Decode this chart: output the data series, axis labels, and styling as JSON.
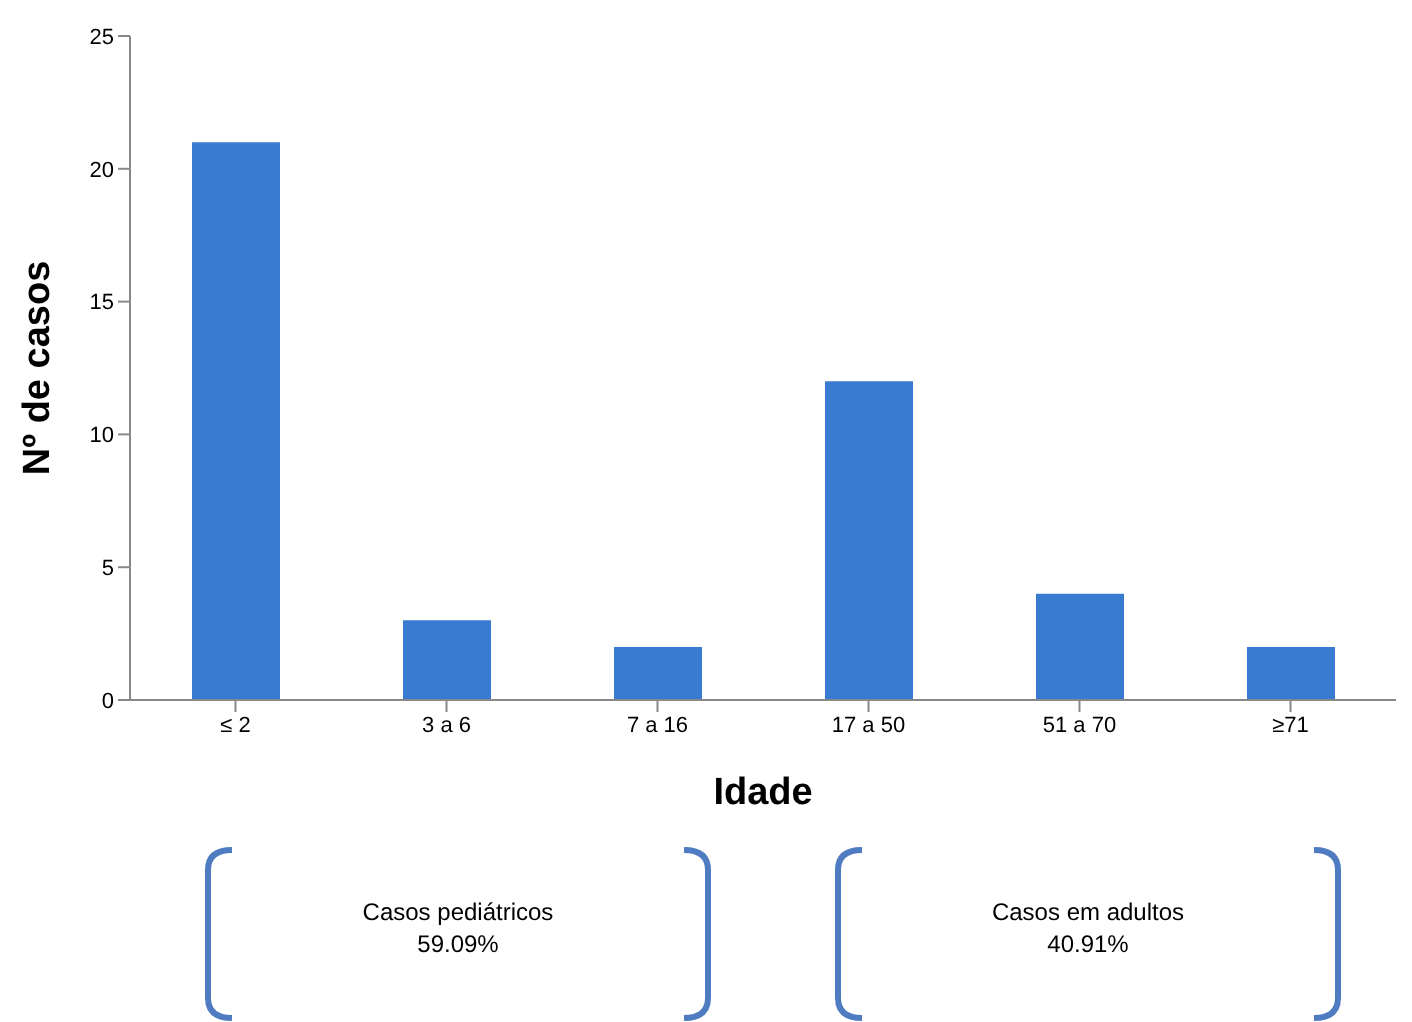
{
  "chart_data": {
    "type": "bar",
    "xlabel": "Idade",
    "ylabel": "Nº de casos",
    "categories": [
      "≤ 2",
      "3 a 6",
      "7 a 16",
      "17 a 50",
      "51 a 70",
      "≥71"
    ],
    "values": [
      21,
      3,
      2,
      12,
      4,
      2
    ],
    "color": "#3a7bd2",
    "ylim": [
      0,
      25
    ],
    "yticks": [
      0,
      5,
      10,
      15,
      20,
      25
    ],
    "annotations": [
      "Casos pediátricos",
      "59.09%",
      "Casos em adultos",
      "40.91%"
    ]
  }
}
